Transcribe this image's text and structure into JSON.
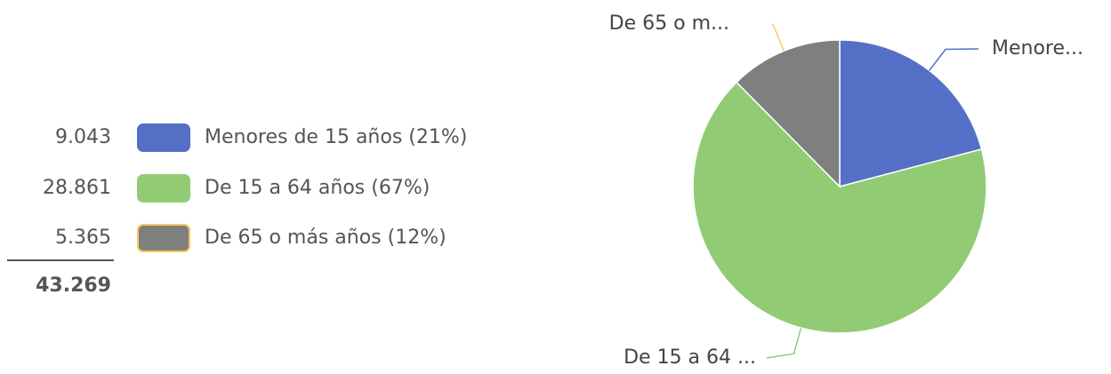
{
  "chart_data": {
    "type": "pie",
    "categories": [
      "Menores de 15 años (21%)",
      "De 15 a 64 años (67%)",
      "De 65 o más años (12%)"
    ],
    "values": [
      9043,
      28861,
      5365
    ],
    "value_labels": [
      "9.043",
      "28.861",
      "5.365"
    ],
    "colors": [
      "#5470c6",
      "#91cc75",
      "#7f7f7f"
    ],
    "border_colors": [
      "#5470c6",
      "#91cc75",
      "#fac858"
    ],
    "slice_labels": [
      "Menore...",
      "De 15 a 64 ...",
      "De 65 o m..."
    ],
    "total": {
      "value": 43269,
      "label": "43.269"
    }
  }
}
